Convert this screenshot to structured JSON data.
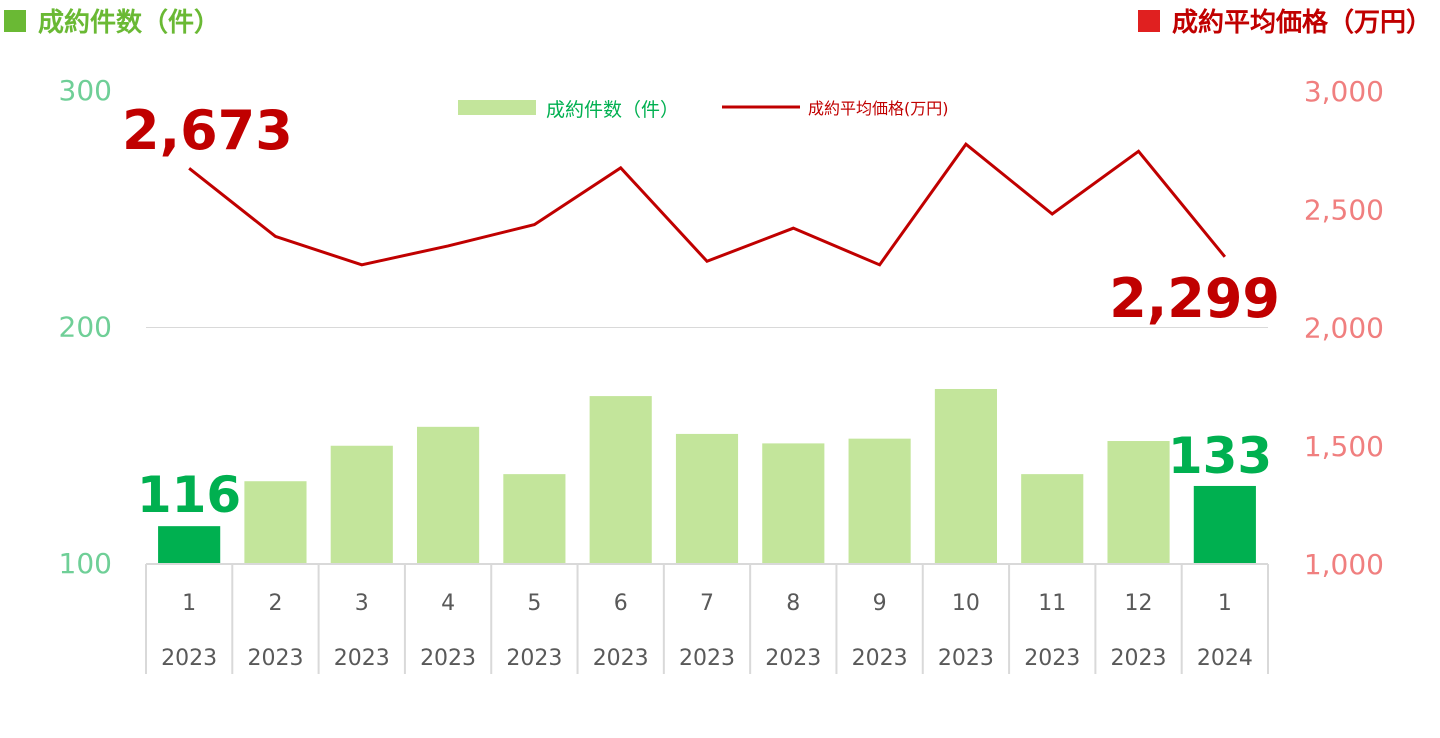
{
  "left_title": "成約件数（件）",
  "right_title": "成約平均価格（万円）",
  "colors": {
    "left_axis": "#6fcf97",
    "right_axis": "#f07f7f",
    "bar": "#c3e59b",
    "bar_highlight": "#00b050",
    "line": "#c00000",
    "left_title": "#6ab934",
    "left_square": "#6ab934",
    "right_title": "#c00000",
    "right_square": "#e02020",
    "grid": "#d9d9d9",
    "tick_text": "#595959"
  },
  "chart_data": {
    "type": "bar+line",
    "categories": [
      {
        "month": "1",
        "year": "2023"
      },
      {
        "month": "2",
        "year": "2023"
      },
      {
        "month": "3",
        "year": "2023"
      },
      {
        "month": "4",
        "year": "2023"
      },
      {
        "month": "5",
        "year": "2023"
      },
      {
        "month": "6",
        "year": "2023"
      },
      {
        "month": "7",
        "year": "2023"
      },
      {
        "month": "8",
        "year": "2023"
      },
      {
        "month": "9",
        "year": "2023"
      },
      {
        "month": "10",
        "year": "2023"
      },
      {
        "month": "11",
        "year": "2023"
      },
      {
        "month": "12",
        "year": "2023"
      },
      {
        "month": "1",
        "year": "2024"
      }
    ],
    "series": [
      {
        "name": "成約件数（件）",
        "type": "bar",
        "axis": "left",
        "values": [
          116,
          135,
          150,
          158,
          138,
          171,
          155,
          151,
          153,
          174,
          138,
          152,
          133
        ],
        "highlight": [
          0,
          12
        ]
      },
      {
        "name": "成約平均価格(万円)",
        "type": "line",
        "axis": "right",
        "values": [
          2673,
          2385,
          2265,
          2345,
          2435,
          2675,
          2280,
          2420,
          2265,
          2775,
          2480,
          2745,
          2299
        ]
      }
    ],
    "y_left": {
      "min": 100,
      "max": 300,
      "ticks": [
        "100",
        "200",
        "300"
      ]
    },
    "y_right": {
      "min": 1000,
      "max": 3000,
      "ticks": [
        "1,000",
        "1,500",
        "2,000",
        "2,500",
        "3,000"
      ]
    },
    "gridlines": [
      200
    ],
    "legend_position": "top-center",
    "annotations": {
      "line_first": "2,673",
      "line_last": "2,299",
      "bar_first": "116",
      "bar_last": "133"
    }
  }
}
